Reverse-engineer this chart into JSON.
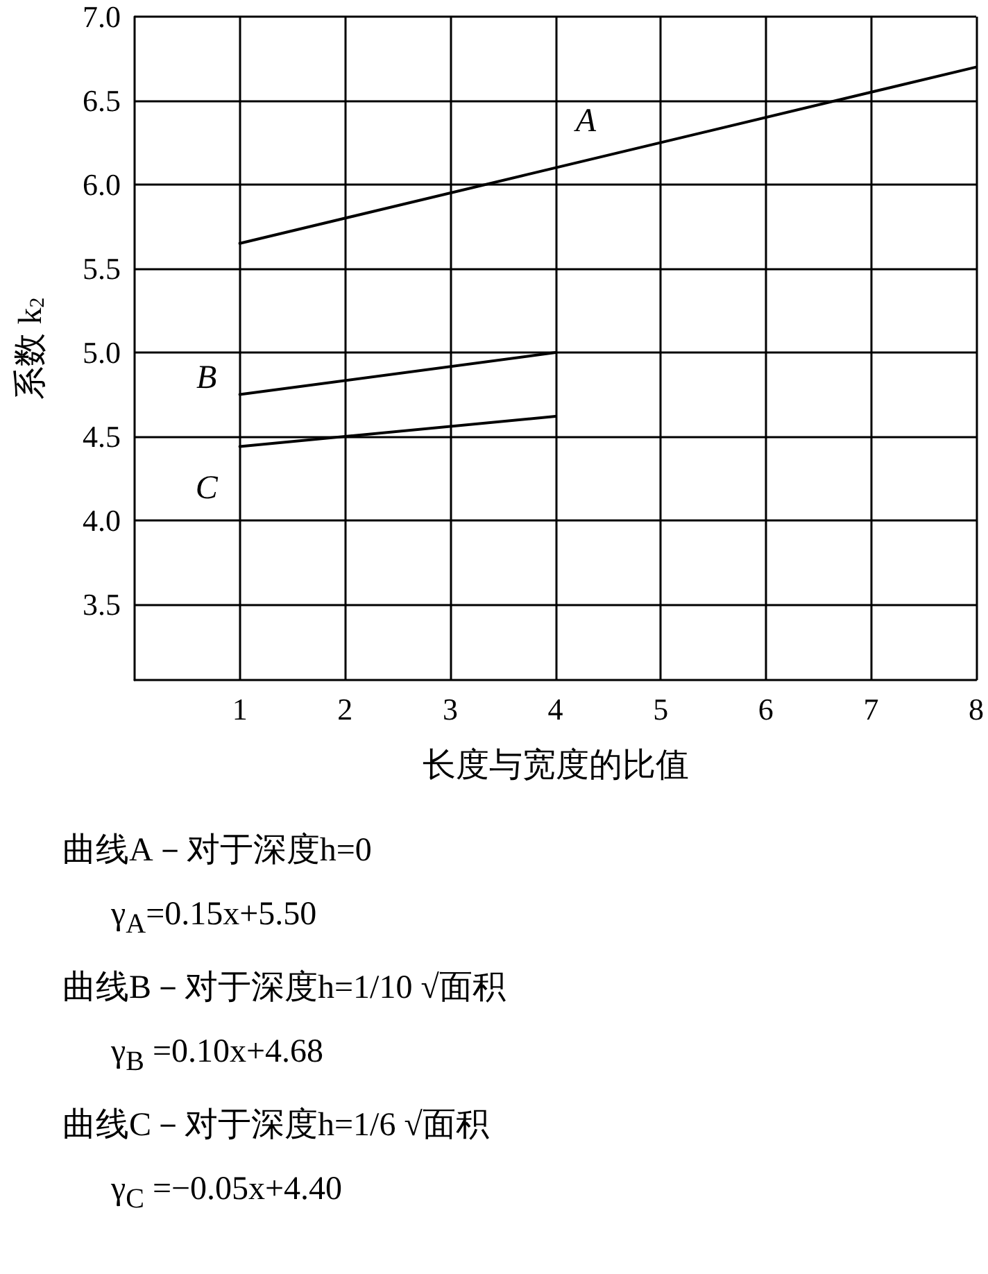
{
  "chart_data": {
    "type": "line",
    "xlabel": "长度与宽度的比值",
    "ylabel": "系数 k$_{2}$",
    "xlim": [
      0,
      8
    ],
    "xticks": [
      1,
      2,
      3,
      4,
      5,
      6,
      7,
      8
    ],
    "ylim": [
      3.05,
      7.0
    ],
    "yticks": [
      {
        "value": 3.5,
        "label": "3.5"
      },
      {
        "value": 4,
        "label": "4.0"
      },
      {
        "value": 4.5,
        "label": "4.5"
      },
      {
        "value": 5,
        "label": "5.0"
      },
      {
        "value": 5.5,
        "label": "5.5"
      },
      {
        "value": 6,
        "label": "6.0"
      },
      {
        "value": 6.5,
        "label": "6.5"
      },
      {
        "value": 7,
        "label": "7.0"
      }
    ],
    "grid": true,
    "marker": "none",
    "line_style": "solid",
    "series": [
      {
        "name": "A",
        "color": "#000000",
        "x": [
          1,
          8
        ],
        "values": [
          5.65,
          6.7
        ]
      },
      {
        "name": "B",
        "color": "#000000",
        "x": [
          1,
          4
        ],
        "values": [
          4.75,
          5.0
        ]
      },
      {
        "name": "C",
        "color": "#000000",
        "x": [
          1,
          4
        ],
        "values": [
          4.44,
          4.62
        ]
      }
    ],
    "annotations": [
      "曲线A－对于深度h=0",
      "γ$_{A}$=0.15x+5.50",
      "曲线B－对于深度h=1/10 √面积",
      "γ$_{B}$ =0.10x+4.68",
      "曲线C－对于深度h=1/6 √面积",
      "γ$_{C}$ =−0.05x+4.40"
    ]
  }
}
